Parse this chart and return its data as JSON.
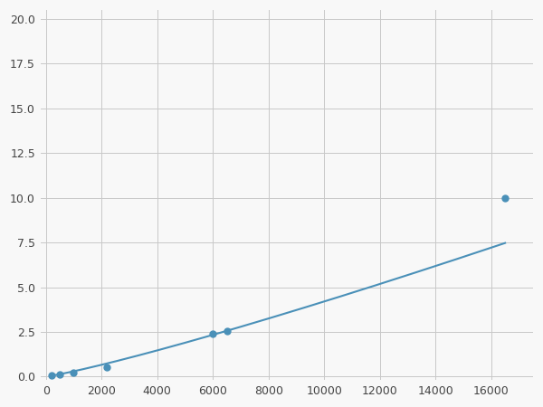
{
  "x_data": [
    200,
    500,
    1000,
    2200,
    6000,
    6500,
    16500
  ],
  "y_data": [
    0.07,
    0.13,
    0.2,
    0.55,
    2.4,
    2.55,
    10.0
  ],
  "line_color": "#4a90b8",
  "marker_color": "#4a90b8",
  "marker_size": 5,
  "line_width": 1.5,
  "xlim": [
    -200,
    17500
  ],
  "ylim": [
    -0.2,
    20.5
  ],
  "xticks": [
    0,
    2000,
    4000,
    6000,
    8000,
    10000,
    12000,
    14000,
    16000
  ],
  "yticks": [
    0.0,
    2.5,
    5.0,
    7.5,
    10.0,
    12.5,
    15.0,
    17.5,
    20.0
  ],
  "grid_color": "#c8c8c8",
  "background_color": "#f8f8f8",
  "figure_bg": "#f8f8f8"
}
